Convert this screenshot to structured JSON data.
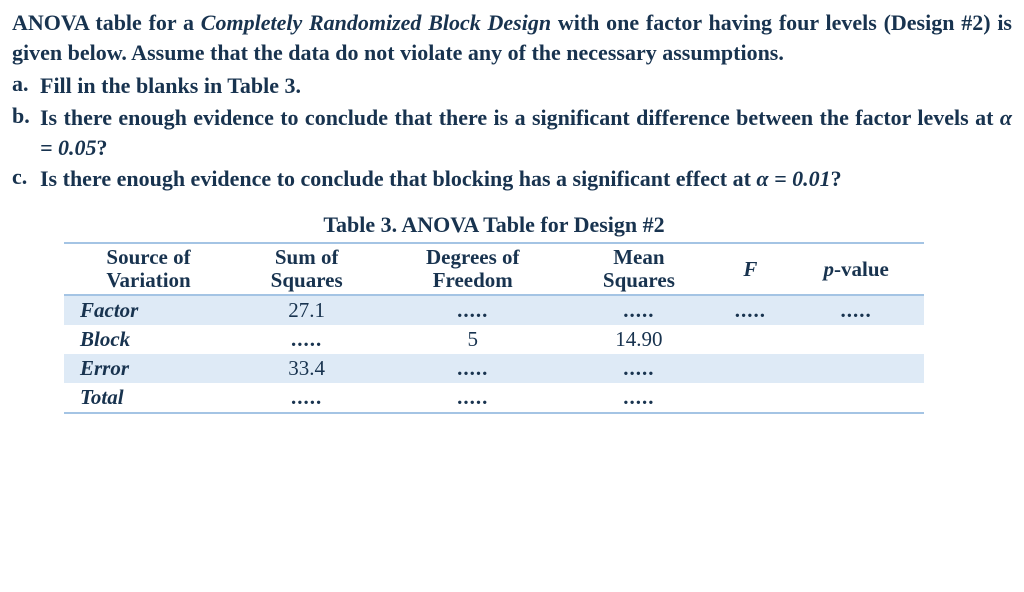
{
  "intro": {
    "part1": "ANOVA table for a ",
    "ital": "Completely Randomized Block Design",
    "part2": " with one factor having four levels (Design #2) is given below. Assume that the data do not violate any of the necessary assumptions."
  },
  "questions": {
    "a": {
      "label": "a.",
      "text": "Fill in the blanks in Table 3."
    },
    "b": {
      "label": "b.",
      "text_pre": "Is there enough evidence to conclude that there is a significant difference between the factor levels at ",
      "alpha": "α  =  0.05",
      "text_post": "?"
    },
    "c": {
      "label": "c.",
      "text_pre": "Is there enough evidence to conclude that blocking has a significant effect at ",
      "alpha": "α  =  0.01",
      "text_post": "?"
    }
  },
  "table": {
    "title_prefix": "Table 3.",
    "title_rest": " ANOVA Table for Design #2",
    "headers": {
      "source1": "Source of",
      "source2": "Variation",
      "ss1": "Sum of",
      "ss2": "Squares",
      "df1": "Degrees of",
      "df2": "Freedom",
      "ms1": "Mean",
      "ms2": "Squares",
      "F": "F",
      "p_char": "p",
      "p_rest": "-value"
    },
    "rows": {
      "factor": {
        "label": "Factor",
        "ss": "27.1",
        "df": ".....",
        "ms": ".....",
        "F": ".....",
        "p": "....."
      },
      "block": {
        "label": "Block",
        "ss": ".....",
        "df": "5",
        "ms": "14.90",
        "F": "",
        "p": ""
      },
      "error": {
        "label": "Error",
        "ss": "33.4",
        "df": ".....",
        "ms": ".....",
        "F": "",
        "p": ""
      },
      "total": {
        "label": "Total",
        "ss": ".....",
        "df": ".....",
        "ms": ".....",
        "F": "",
        "p": ""
      }
    },
    "styling": {
      "band_color": "#deeaf6",
      "rule_color": "#a4c4e4",
      "text_color": "#18334f",
      "font_size_pt": 16
    }
  }
}
